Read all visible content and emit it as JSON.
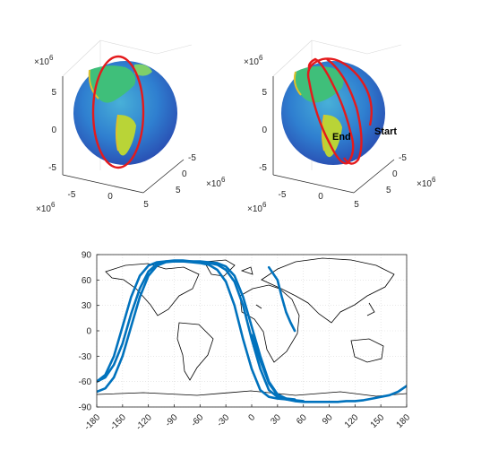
{
  "chart_data": [
    {
      "type": "3d-surface",
      "z_ticks": [
        "5",
        "0",
        "-5"
      ],
      "x_ticks": [
        "-5",
        "0",
        "5"
      ],
      "y_ticks": [
        "-5",
        "0",
        "5"
      ],
      "exponent_label": "×10",
      "exponent_power": "6",
      "orbit_color": "#e41a1c",
      "annotations": []
    },
    {
      "type": "3d-surface",
      "z_ticks": [
        "5",
        "0",
        "-5"
      ],
      "x_ticks": [
        "-5",
        "0",
        "5"
      ],
      "y_ticks": [
        "-5",
        "0",
        "5"
      ],
      "exponent_label": "×10",
      "exponent_power": "6",
      "orbit_color": "#e41a1c",
      "annotations": [
        "End",
        "Start"
      ]
    },
    {
      "type": "line",
      "x_ticks": [
        "-180",
        "-150",
        "-120",
        "-90",
        "-60",
        "-30",
        "0",
        "30",
        "60",
        "90",
        "120",
        "150",
        "180"
      ],
      "y_ticks": [
        "90",
        "60",
        "30",
        "0",
        "-30",
        "-60",
        "-90"
      ],
      "xlim": [
        -180,
        180
      ],
      "ylim": [
        -90,
        90
      ],
      "grid": true,
      "series_color": "#0072bd",
      "series": [
        {
          "x": [
            -180,
            -170,
            -160,
            -150,
            -140,
            -130,
            -120,
            -110,
            -100,
            -90,
            -80,
            -70,
            -60,
            -50,
            -40,
            -30,
            -20,
            -10,
            0,
            10,
            20,
            30,
            40,
            50
          ],
          "y": [
            -60,
            -52,
            -30,
            5,
            40,
            65,
            77,
            81,
            82,
            82,
            82,
            81,
            80,
            78,
            72,
            58,
            30,
            -10,
            -45,
            -70,
            -78,
            -80,
            -81,
            -82
          ]
        },
        {
          "x": [
            -180,
            -170,
            -160,
            -150,
            -140,
            -130,
            -120,
            -110,
            -100,
            -90,
            -80,
            -70,
            -60,
            -50,
            -40,
            -30,
            -20,
            -10,
            0,
            10,
            20,
            30,
            40,
            50
          ],
          "y": [
            -72,
            -68,
            -55,
            -30,
            5,
            40,
            65,
            77,
            81,
            82,
            82,
            82,
            81,
            80,
            78,
            72,
            58,
            30,
            -10,
            -45,
            -70,
            -78,
            -80,
            -81
          ]
        },
        {
          "x": [
            -180,
            -170,
            -160,
            -150,
            -140,
            -130,
            -120,
            -110,
            -100,
            -90,
            -80,
            -70,
            -60,
            -50,
            -40,
            -30,
            -20,
            -10,
            0,
            10,
            20,
            30,
            40,
            50,
            60
          ],
          "y": [
            -60,
            -55,
            -40,
            -15,
            20,
            50,
            70,
            79,
            82,
            83,
            83,
            82,
            82,
            81,
            80,
            76,
            65,
            40,
            5,
            -30,
            -60,
            -75,
            -80,
            -82,
            -83
          ]
        },
        {
          "x": [
            0,
            10,
            20,
            30,
            40,
            50,
            60,
            70,
            80,
            90,
            100,
            110,
            120,
            130,
            140,
            150,
            160,
            170,
            180
          ],
          "y": [
            -5,
            -35,
            -62,
            -76,
            -81,
            -83,
            -84,
            -84,
            -84,
            -84,
            -84,
            -83,
            -83,
            -82,
            -80,
            -78,
            -76,
            -72,
            -65
          ]
        },
        {
          "x": [
            20,
            30,
            35,
            40,
            45,
            50
          ],
          "y": [
            75,
            60,
            40,
            22,
            10,
            0
          ]
        }
      ]
    }
  ]
}
